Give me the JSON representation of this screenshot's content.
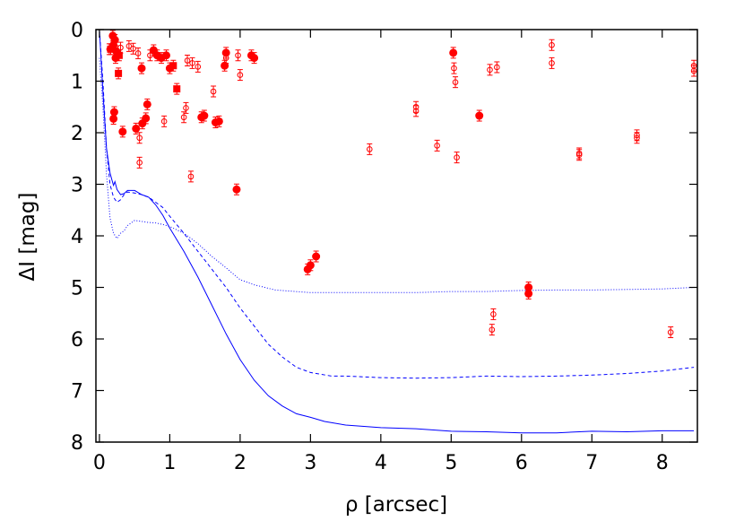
{
  "chart_data": {
    "type": "scatter",
    "xlabel": "ρ [arcsec]",
    "ylabel": "ΔI [mag]",
    "xlim": [
      -0.05,
      8.5
    ],
    "ylim": [
      8,
      0
    ],
    "y_inverted": true,
    "xticks": [
      0,
      1,
      2,
      3,
      4,
      5,
      6,
      7,
      8
    ],
    "yticks": [
      0,
      1,
      2,
      3,
      4,
      5,
      6,
      7,
      8
    ],
    "grid": false,
    "colors": {
      "points": "#ff0000",
      "curves": "#0000ff",
      "axes": "#000000"
    },
    "series": [
      {
        "marker": "filled-circle",
        "points": [
          [
            0.19,
            0.12
          ],
          [
            0.22,
            0.2
          ],
          [
            0.2,
            0.3
          ],
          [
            0.24,
            0.42
          ],
          [
            0.23,
            0.55
          ],
          [
            0.21,
            1.6
          ],
          [
            0.2,
            1.73
          ],
          [
            0.33,
            1.98
          ],
          [
            0.52,
            1.92
          ],
          [
            0.61,
            1.82
          ],
          [
            0.66,
            1.72
          ],
          [
            0.68,
            1.45
          ],
          [
            0.6,
            0.75
          ],
          [
            0.77,
            0.4
          ],
          [
            0.82,
            0.5
          ],
          [
            0.88,
            0.55
          ],
          [
            0.95,
            0.5
          ],
          [
            1.0,
            0.75
          ],
          [
            1.45,
            1.7
          ],
          [
            1.49,
            1.67
          ],
          [
            1.65,
            1.8
          ],
          [
            1.7,
            1.78
          ],
          [
            1.78,
            0.7
          ],
          [
            1.8,
            0.45
          ],
          [
            2.16,
            0.5
          ],
          [
            2.2,
            0.55
          ],
          [
            1.95,
            3.1
          ],
          [
            2.96,
            4.65
          ],
          [
            3.0,
            4.57
          ],
          [
            3.08,
            4.4
          ],
          [
            5.03,
            0.45
          ],
          [
            5.4,
            1.67
          ],
          [
            6.1,
            5.0
          ],
          [
            6.1,
            5.12
          ]
        ]
      },
      {
        "marker": "filled-square",
        "points": [
          [
            0.28,
            0.5
          ],
          [
            0.27,
            0.85
          ],
          [
            1.05,
            0.7
          ],
          [
            1.1,
            1.15
          ],
          [
            0.16,
            0.38
          ]
        ]
      },
      {
        "marker": "open-circle",
        "points": [
          [
            0.14,
            0.38
          ],
          [
            0.3,
            0.35
          ],
          [
            0.42,
            0.32
          ],
          [
            0.48,
            0.37
          ],
          [
            0.55,
            0.46
          ],
          [
            0.72,
            0.5
          ],
          [
            0.92,
            1.78
          ],
          [
            0.57,
            2.1
          ],
          [
            0.57,
            2.58
          ],
          [
            1.2,
            1.7
          ],
          [
            1.23,
            1.52
          ],
          [
            1.25,
            0.6
          ],
          [
            1.32,
            0.65
          ],
          [
            1.4,
            0.72
          ],
          [
            1.3,
            2.85
          ],
          [
            1.62,
            1.2
          ],
          [
            1.8,
            0.55
          ],
          [
            1.97,
            0.5
          ],
          [
            2.0,
            0.88
          ],
          [
            3.84,
            2.32
          ],
          [
            4.5,
            1.5
          ],
          [
            4.5,
            1.58
          ],
          [
            4.8,
            2.25
          ],
          [
            5.04,
            0.75
          ],
          [
            5.06,
            1.02
          ],
          [
            5.08,
            2.48
          ],
          [
            5.55,
            0.78
          ],
          [
            5.65,
            0.73
          ],
          [
            5.6,
            5.52
          ],
          [
            5.58,
            5.82
          ],
          [
            6.43,
            0.3
          ],
          [
            6.43,
            0.65
          ],
          [
            6.82,
            2.4
          ],
          [
            6.82,
            2.43
          ],
          [
            7.64,
            2.05
          ],
          [
            7.64,
            2.1
          ],
          [
            8.45,
            0.7
          ],
          [
            8.45,
            0.8
          ],
          [
            8.12,
            5.87
          ]
        ]
      },
      {
        "name": "solid",
        "style": "solid",
        "points": [
          [
            0.0,
            0.0
          ],
          [
            0.05,
            1.2
          ],
          [
            0.1,
            2.3
          ],
          [
            0.15,
            2.78
          ],
          [
            0.18,
            2.93
          ],
          [
            0.2,
            3.02
          ],
          [
            0.22,
            2.95
          ],
          [
            0.25,
            3.1
          ],
          [
            0.3,
            3.2
          ],
          [
            0.35,
            3.18
          ],
          [
            0.4,
            3.12
          ],
          [
            0.5,
            3.12
          ],
          [
            0.6,
            3.2
          ],
          [
            0.7,
            3.25
          ],
          [
            0.8,
            3.4
          ],
          [
            0.9,
            3.6
          ],
          [
            1.0,
            3.85
          ],
          [
            1.2,
            4.3
          ],
          [
            1.4,
            4.8
          ],
          [
            1.6,
            5.35
          ],
          [
            1.8,
            5.9
          ],
          [
            2.0,
            6.4
          ],
          [
            2.2,
            6.8
          ],
          [
            2.4,
            7.1
          ],
          [
            2.6,
            7.3
          ],
          [
            2.8,
            7.45
          ],
          [
            3.0,
            7.52
          ],
          [
            3.2,
            7.6
          ],
          [
            3.5,
            7.67
          ],
          [
            4.0,
            7.72
          ],
          [
            4.5,
            7.74
          ],
          [
            5.0,
            7.79
          ],
          [
            5.5,
            7.8
          ],
          [
            6.0,
            7.82
          ],
          [
            6.5,
            7.82
          ],
          [
            7.0,
            7.79
          ],
          [
            7.5,
            7.8
          ],
          [
            8.0,
            7.78
          ],
          [
            8.45,
            7.78
          ]
        ]
      },
      {
        "name": "dashed",
        "style": "dashed",
        "points": [
          [
            0.0,
            0.0
          ],
          [
            0.05,
            1.0
          ],
          [
            0.1,
            2.3
          ],
          [
            0.15,
            3.0
          ],
          [
            0.2,
            3.25
          ],
          [
            0.25,
            3.35
          ],
          [
            0.3,
            3.3
          ],
          [
            0.35,
            3.2
          ],
          [
            0.4,
            3.15
          ],
          [
            0.5,
            3.17
          ],
          [
            0.6,
            3.2
          ],
          [
            0.7,
            3.25
          ],
          [
            0.8,
            3.35
          ],
          [
            0.9,
            3.45
          ],
          [
            1.0,
            3.62
          ],
          [
            1.2,
            3.95
          ],
          [
            1.4,
            4.3
          ],
          [
            1.6,
            4.65
          ],
          [
            1.8,
            5.0
          ],
          [
            2.0,
            5.4
          ],
          [
            2.2,
            5.75
          ],
          [
            2.4,
            6.1
          ],
          [
            2.6,
            6.35
          ],
          [
            2.8,
            6.55
          ],
          [
            3.0,
            6.65
          ],
          [
            3.3,
            6.72
          ],
          [
            3.5,
            6.72
          ],
          [
            4.0,
            6.75
          ],
          [
            4.5,
            6.76
          ],
          [
            5.0,
            6.75
          ],
          [
            5.5,
            6.72
          ],
          [
            6.0,
            6.73
          ],
          [
            6.5,
            6.72
          ],
          [
            7.0,
            6.7
          ],
          [
            7.5,
            6.67
          ],
          [
            8.0,
            6.62
          ],
          [
            8.45,
            6.55
          ]
        ]
      },
      {
        "name": "dotted",
        "style": "dotted",
        "points": [
          [
            0.0,
            0.55
          ],
          [
            0.05,
            1.5
          ],
          [
            0.1,
            2.8
          ],
          [
            0.15,
            3.65
          ],
          [
            0.2,
            3.95
          ],
          [
            0.25,
            4.05
          ],
          [
            0.3,
            3.95
          ],
          [
            0.35,
            3.9
          ],
          [
            0.4,
            3.8
          ],
          [
            0.5,
            3.7
          ],
          [
            0.6,
            3.72
          ],
          [
            0.7,
            3.74
          ],
          [
            0.8,
            3.75
          ],
          [
            0.9,
            3.78
          ],
          [
            1.0,
            3.82
          ],
          [
            1.2,
            3.95
          ],
          [
            1.4,
            4.15
          ],
          [
            1.6,
            4.4
          ],
          [
            1.8,
            4.62
          ],
          [
            2.0,
            4.85
          ],
          [
            2.2,
            4.95
          ],
          [
            2.5,
            5.05
          ],
          [
            3.0,
            5.1
          ],
          [
            3.5,
            5.1
          ],
          [
            4.0,
            5.1
          ],
          [
            4.5,
            5.1
          ],
          [
            5.0,
            5.08
          ],
          [
            5.5,
            5.08
          ],
          [
            6.0,
            5.06
          ],
          [
            6.5,
            5.05
          ],
          [
            7.0,
            5.05
          ],
          [
            7.5,
            5.04
          ],
          [
            8.0,
            5.03
          ],
          [
            8.45,
            5.0
          ]
        ]
      }
    ]
  }
}
